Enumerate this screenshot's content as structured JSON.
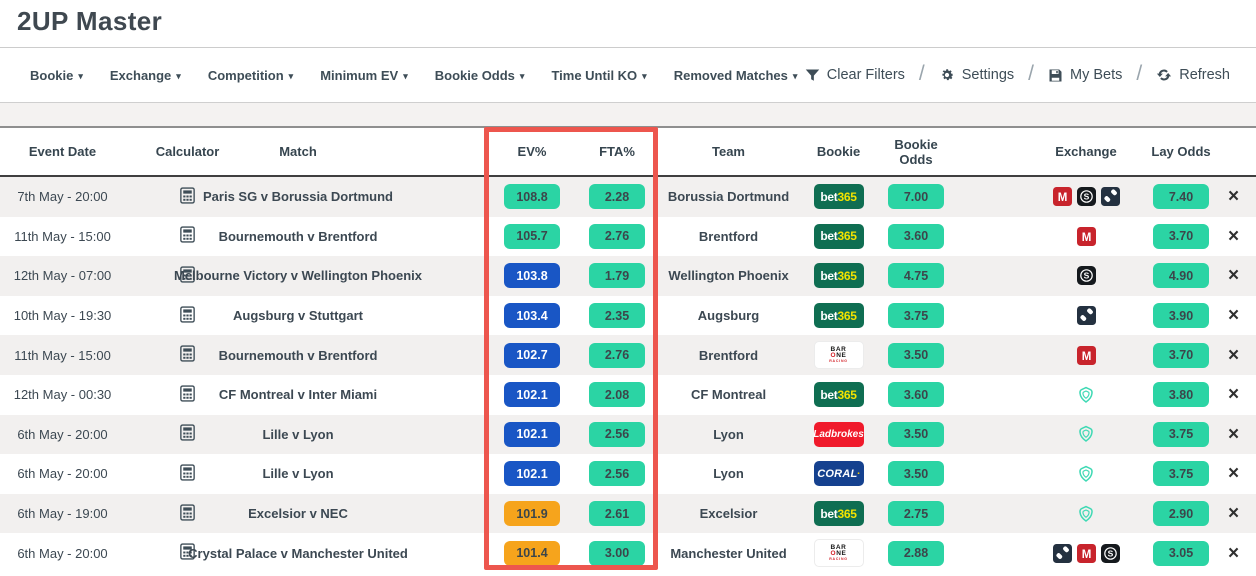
{
  "page": {
    "title": "2UP Master"
  },
  "filters": [
    "Bookie",
    "Exchange",
    "Competition",
    "Minimum EV",
    "Bookie Odds",
    "Time Until KO",
    "Removed Matches"
  ],
  "toolbar": {
    "clear": "Clear Filters",
    "settings": "Settings",
    "mybets": "My Bets",
    "refresh": "Refresh",
    "icons": [
      "filter-icon",
      "gear-icon",
      "save-icon",
      "refresh-icon"
    ]
  },
  "table": {
    "headers": [
      "Event Date",
      "Calculator",
      "Match",
      "EV%",
      "FTA%",
      "Team",
      "Bookie",
      "Bookie Odds",
      "Exchange",
      "Lay Odds"
    ],
    "rows": [
      {
        "date": "7th May - 20:00",
        "match": "Paris SG v Borussia Dortmund",
        "ev": "108.8",
        "ev_color": "green",
        "fta": "2.28",
        "team": "Borussia Dortmund",
        "bookie": "bet365",
        "odds": "7.00",
        "exchanges": [
          "matchbook",
          "smarkets",
          "diamond-tiles"
        ],
        "lay": "7.40"
      },
      {
        "date": "11th May - 15:00",
        "match": "Bournemouth v Brentford",
        "ev": "105.7",
        "ev_color": "green",
        "fta": "2.76",
        "team": "Brentford",
        "bookie": "bet365",
        "odds": "3.60",
        "exchanges": [
          "matchbook"
        ],
        "lay": "3.70"
      },
      {
        "date": "12th May - 07:00",
        "match": "Melbourne Victory v Wellington Phoenix",
        "ev": "103.8",
        "ev_color": "blue",
        "fta": "1.79",
        "team": "Wellington Phoenix",
        "bookie": "bet365",
        "odds": "4.75",
        "exchanges": [
          "smarkets"
        ],
        "lay": "4.90"
      },
      {
        "date": "10th May - 19:30",
        "match": "Augsburg v Stuttgart",
        "ev": "103.4",
        "ev_color": "blue",
        "fta": "2.35",
        "team": "Augsburg",
        "bookie": "bet365",
        "odds": "3.75",
        "exchanges": [
          "diamond-tiles"
        ],
        "lay": "3.90"
      },
      {
        "date": "11th May - 15:00",
        "match": "Bournemouth v Brentford",
        "ev": "102.7",
        "ev_color": "blue",
        "fta": "2.76",
        "team": "Brentford",
        "bookie": "barone",
        "odds": "3.50",
        "exchanges": [
          "matchbook"
        ],
        "lay": "3.70"
      },
      {
        "date": "12th May - 00:30",
        "match": "CF Montreal v Inter Miami",
        "ev": "102.1",
        "ev_color": "blue",
        "fta": "2.08",
        "team": "CF Montreal",
        "bookie": "bet365",
        "odds": "3.60",
        "exchanges": [
          "shield"
        ],
        "lay": "3.80"
      },
      {
        "date": "6th May - 20:00",
        "match": "Lille v Lyon",
        "ev": "102.1",
        "ev_color": "blue",
        "fta": "2.56",
        "team": "Lyon",
        "bookie": "ladbrokes",
        "odds": "3.50",
        "exchanges": [
          "shield"
        ],
        "lay": "3.75"
      },
      {
        "date": "6th May - 20:00",
        "match": "Lille v Lyon",
        "ev": "102.1",
        "ev_color": "blue",
        "fta": "2.56",
        "team": "Lyon",
        "bookie": "coral",
        "odds": "3.50",
        "exchanges": [
          "shield"
        ],
        "lay": "3.75"
      },
      {
        "date": "6th May - 19:00",
        "match": "Excelsior v NEC",
        "ev": "101.9",
        "ev_color": "orange",
        "fta": "2.61",
        "team": "Excelsior",
        "bookie": "bet365",
        "odds": "2.75",
        "exchanges": [
          "shield"
        ],
        "lay": "2.90"
      },
      {
        "date": "6th May - 20:00",
        "match": "Crystal Palace v Manchester United",
        "ev": "101.4",
        "ev_color": "orange",
        "fta": "3.00",
        "team": "Manchester United",
        "bookie": "barone",
        "odds": "2.88",
        "exchanges": [
          "diamond-tiles",
          "matchbook",
          "smarkets"
        ],
        "lay": "3.05"
      }
    ]
  },
  "bookie_labels": {
    "bet365": "bet365",
    "barone": "BAR ONE RACING",
    "ladbrokes": "Ladbrokes",
    "coral": "CORAL"
  },
  "remove_label": "×",
  "colors": {
    "accent_green": "#2bd4a4",
    "accent_blue": "#1956c5",
    "accent_orange": "#f6a41c",
    "highlight_red": "#ed564e",
    "bet365_green": "#0f6e52",
    "bet365_yellow": "#f2e300",
    "ladbrokes_red": "#f01a2b",
    "coral_navy": "#15418f",
    "barone_red": "#d21f26",
    "matchbook_red": "#c8242c",
    "smarkets_black": "#15191d",
    "exchange_navy": "#243140",
    "shield_teal": "#3fd9b4",
    "text_dark": "#3c4852"
  }
}
